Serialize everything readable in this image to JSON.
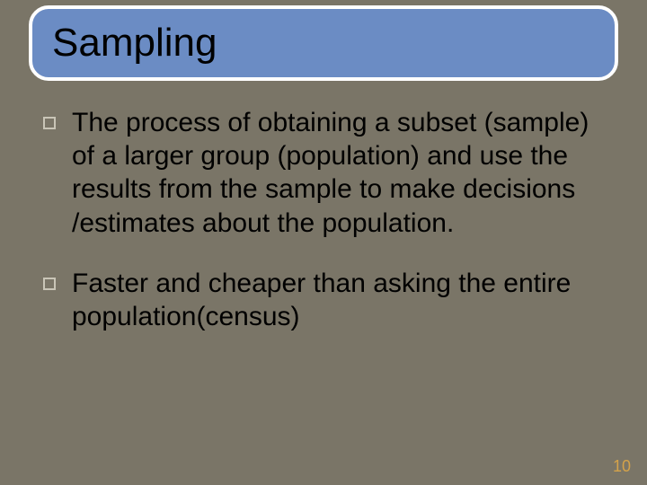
{
  "slide": {
    "title": "Sampling",
    "bullets": [
      {
        "text": "The process of obtaining a subset (sample) of a larger group (population) and use  the results  from the sample to make  decisions /estimates  about the population."
      },
      {
        "text": "Faster and cheaper than asking the entire population(census)"
      }
    ],
    "page_number": "10"
  },
  "style": {
    "background_color": "#7a7567",
    "title_bar_fill": "#6b8cc4",
    "title_bar_border": "#ffffff",
    "title_bar_border_radius": 22,
    "title_font_size": 44,
    "title_color": "#000000",
    "body_font_size": 30,
    "body_color": "#000000",
    "bullet_border_color": "#c9c5b7",
    "page_number_color": "#d4a24a",
    "page_number_font_size": 18
  }
}
